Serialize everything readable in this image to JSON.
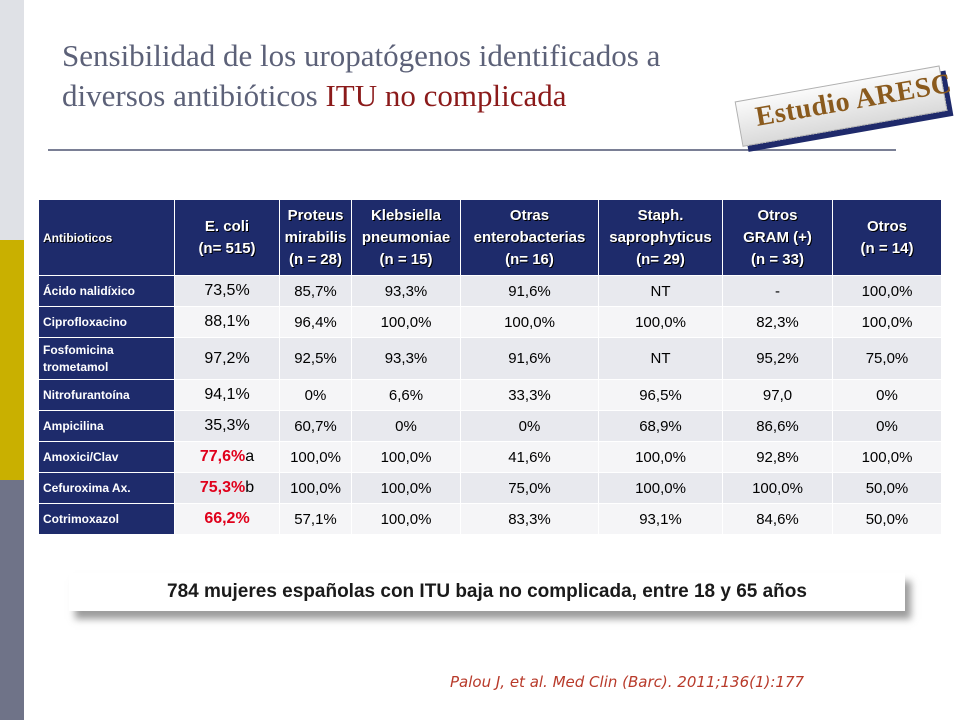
{
  "title": {
    "line1": "Sensibilidad de los uropatógenos identificados a",
    "line2_plain": "diversos  antibióticos ",
    "line2_highlight": "ITU no complicada"
  },
  "stamp": {
    "text": "Estudio ARESC"
  },
  "table": {
    "header": {
      "antibioticos": "Antibioticos",
      "ecoli": [
        "E. coli",
        "(n= 515)"
      ],
      "proteus": [
        "Proteus",
        "mirabilis",
        "(n = 28)"
      ],
      "klebsiella": [
        "Klebsiella",
        "pneumoniae",
        "(n = 15)"
      ],
      "otras": [
        "Otras",
        "enterobacterias",
        "(n= 16)"
      ],
      "staph": [
        "Staph.",
        "saprophyticus",
        "(n= 29)"
      ],
      "gram": [
        "Otros",
        "GRAM (+)",
        "(n = 33)"
      ],
      "otros": [
        "Otros",
        "(n = 14)"
      ]
    },
    "rows": [
      {
        "name": "Ácido nalidíxico",
        "values": [
          "73,5%",
          "85,7%",
          "93,3%",
          "91,6%",
          "NT",
          "-",
          "100,0%"
        ]
      },
      {
        "name": "Ciprofloxacino",
        "values": [
          "88,1%",
          "96,4%",
          "100,0%",
          "100,0%",
          "100,0%",
          "82,3%",
          "100,0%"
        ]
      },
      {
        "name": [
          "Fosfomicina",
          "trometamol"
        ],
        "values": [
          "97,2%",
          "92,5%",
          "93,3%",
          "91,6%",
          "NT",
          "95,2%",
          "75,0%"
        ]
      },
      {
        "name": "Nitrofurantoína",
        "values": [
          "94,1%",
          "0%",
          "6,6%",
          "33,3%",
          "96,5%",
          "97,0",
          "0%"
        ]
      },
      {
        "name": "Ampicilina",
        "values": [
          "35,3%",
          "60,7%",
          "0%",
          "0%",
          "68,9%",
          "86,6%",
          "0%"
        ]
      },
      {
        "name": "Amoxici/Clav",
        "values": [
          "77,6%",
          "100,0%",
          "100,0%",
          "41,6%",
          "100,0%",
          "92,8%",
          "100,0%"
        ],
        "ecoli_suffix": "a"
      },
      {
        "name": "Cefuroxima Ax.",
        "values": [
          "75,3%",
          "100,0%",
          "100,0%",
          "75,0%",
          "100,0%",
          "100,0%",
          "50,0%"
        ],
        "ecoli_suffix": "b"
      },
      {
        "name": "Cotrimoxazol",
        "values": [
          "66,2%",
          "57,1%",
          "100,0%",
          "83,3%",
          "93,1%",
          "84,6%",
          "50,0%"
        ]
      }
    ]
  },
  "banner": {
    "text": "784 mujeres españolas con ITU baja no complicada, entre 18 y 65 años"
  },
  "citation": {
    "text": "Palou J, et al.  Med Clin (Barc). 2011;136(1):177"
  },
  "colors": {
    "title": "#5c6178",
    "title_highlight": "#8b1a1a",
    "header_bg": "#1e2b6b",
    "row_odd": "#e8e9ee",
    "row_even": "#f5f5f7",
    "emphasis_red": "#e0001b",
    "sidebar": [
      "#dfe1e6",
      "#c9b000",
      "#6f7388"
    ],
    "citation": "#b83a2a"
  }
}
